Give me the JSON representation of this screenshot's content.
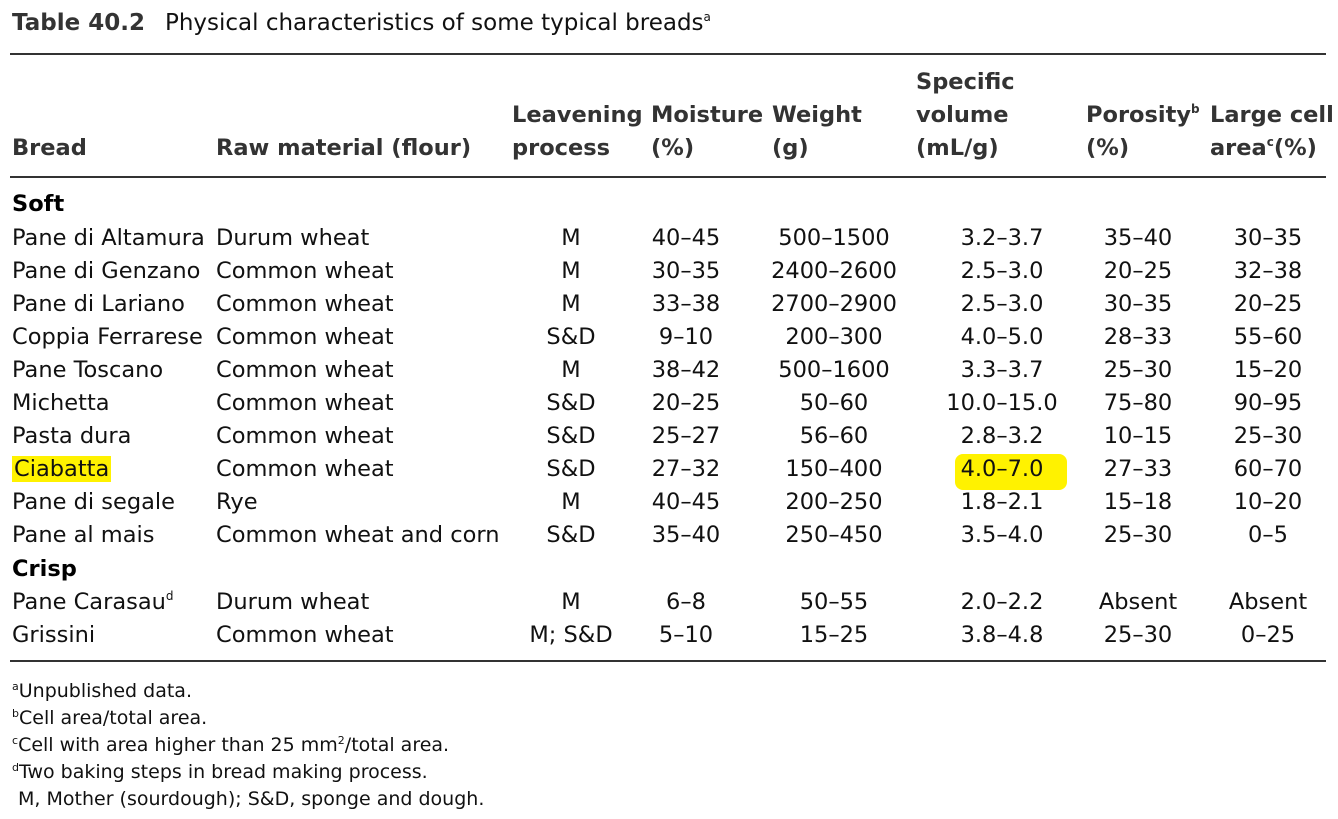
{
  "caption": {
    "number": "Table 40.2",
    "title": "Physical characteristics of some typical breads",
    "title_sup": "a"
  },
  "headers": {
    "bread": "Bread",
    "raw": "Raw material (flour)",
    "leav_1": "Leavening",
    "leav_2": "process",
    "moist_1": "Moisture",
    "moist_2": "(%)",
    "weight_1": "Weight",
    "weight_2": "(g)",
    "vol_1": "Specific",
    "vol_2": "volume",
    "vol_3": "(mL/g)",
    "por_1": "Porosity",
    "por_sup": "b",
    "por_2": "(%)",
    "lca_1": "Large cell",
    "lca_2a": "area",
    "lca_sup": "c",
    "lca_2b": "(%)"
  },
  "groups": {
    "soft": "Soft",
    "crisp": "Crisp"
  },
  "rows": [
    {
      "bread": "Pane di Altamura",
      "raw": "Durum wheat",
      "leav": "M",
      "moist": "40–45",
      "weight": "500–1500",
      "vol": "3.2–3.7",
      "por": "35–40",
      "lca": "30–35"
    },
    {
      "bread": "Pane di Genzano",
      "raw": "Common wheat",
      "leav": "M",
      "moist": "30–35",
      "weight": "2400–2600",
      "vol": "2.5–3.0",
      "por": "20–25",
      "lca": "32–38"
    },
    {
      "bread": "Pane di Lariano",
      "raw": "Common wheat",
      "leav": "M",
      "moist": "33–38",
      "weight": "2700–2900",
      "vol": "2.5–3.0",
      "por": "30–35",
      "lca": "20–25"
    },
    {
      "bread": "Coppia Ferrarese",
      "raw": "Common wheat",
      "leav": "S&D",
      "moist": "9–10",
      "weight": "200–300",
      "vol": "4.0–5.0",
      "por": "28–33",
      "lca": "55–60"
    },
    {
      "bread": "Pane Toscano",
      "raw": "Common wheat",
      "leav": "M",
      "moist": "38–42",
      "weight": "500–1600",
      "vol": "3.3–3.7",
      "por": "25–30",
      "lca": "15–20"
    },
    {
      "bread": "Michetta",
      "raw": "Common wheat",
      "leav": "S&D",
      "moist": "20–25",
      "weight": "50–60",
      "vol": "10.0–15.0",
      "por": "75–80",
      "lca": "90–95"
    },
    {
      "bread": "Pasta dura",
      "raw": "Common wheat",
      "leav": "S&D",
      "moist": "25–27",
      "weight": "56–60",
      "vol": "2.8–3.2",
      "por": "10–15",
      "lca": "25–30"
    },
    {
      "bread": "Ciabatta",
      "raw": "Common wheat",
      "leav": "S&D",
      "moist": "27–32",
      "weight": "150–400",
      "vol": "4.0–7.0",
      "por": "27–33",
      "lca": "60–70"
    },
    {
      "bread": "Pane di segale",
      "raw": "Rye",
      "leav": "M",
      "moist": "40–45",
      "weight": "200–250",
      "vol": "1.8–2.1",
      "por": "15–18",
      "lca": "10–20"
    },
    {
      "bread": "Pane al mais",
      "raw": "Common wheat and corn",
      "leav": "S&D",
      "moist": "35–40",
      "weight": "250–450",
      "vol": "3.5–4.0",
      "por": "25–30",
      "lca": "0–5"
    },
    {
      "bread": "Pane Carasau",
      "bread_sup": "d",
      "raw": "Durum wheat",
      "leav": "M",
      "moist": "6–8",
      "weight": "50–55",
      "vol": "2.0–2.2",
      "por": "Absent",
      "lca": "Absent"
    },
    {
      "bread": "Grissini",
      "raw": "Common wheat",
      "leav": "M; S&D",
      "moist": "5–10",
      "weight": "15–25",
      "vol": "3.8–4.8",
      "por": "25–30",
      "lca": "0–25"
    }
  ],
  "highlight_color": "#fff200",
  "footnotes": [
    {
      "mark": "a",
      "text": "Unpublished data."
    },
    {
      "mark": "b",
      "text": "Cell area/total area."
    },
    {
      "mark": "c",
      "text": "Cell with area higher than 25 mm",
      "sup2": "2",
      "text2": "/total area."
    },
    {
      "mark": "d",
      "text": "Two baking steps in bread making process."
    },
    {
      "mark": "",
      "text": " M, Mother (sourdough); S&D, sponge and dough."
    }
  ]
}
